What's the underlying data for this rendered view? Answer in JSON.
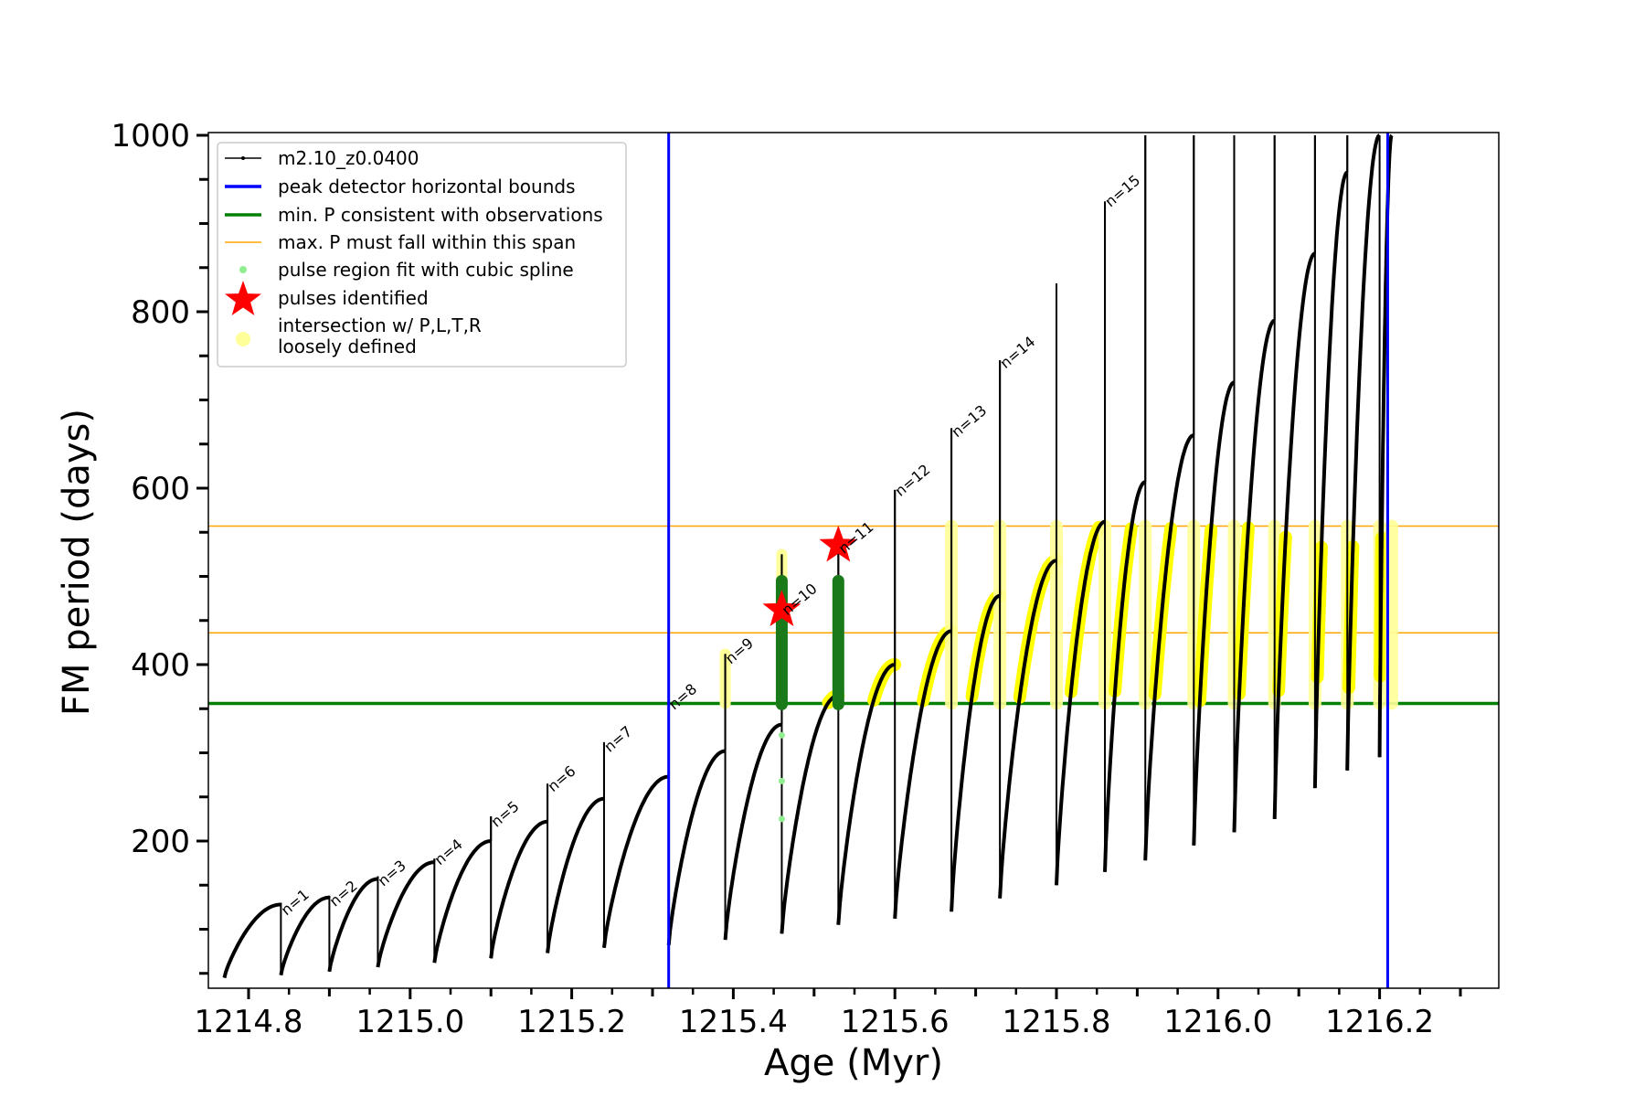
{
  "chart_data": {
    "type": "line",
    "xlabel": "Age (Myr)",
    "ylabel": "FM period (days)",
    "xlim": [
      1214.72,
      1216.32
    ],
    "ylim": [
      30,
      1000
    ],
    "xticks": [
      1214.8,
      1215.0,
      1215.2,
      1215.4,
      1215.6,
      1215.8,
      1216.0,
      1216.2
    ],
    "xtick_labels": [
      "1214.8",
      "1215.0",
      "1215.2",
      "1215.4",
      "1215.6",
      "1215.8",
      "1216.0",
      "1216.2"
    ],
    "yticks": [
      200,
      400,
      600,
      800,
      1000
    ],
    "ytick_labels": [
      "200",
      "400",
      "600",
      "800",
      "1000"
    ],
    "grid": false,
    "legend_position": "top-left",
    "legend": [
      {
        "label": "m2.10_z0.0400",
        "marker": "line-dot",
        "color": "#000000"
      },
      {
        "label": "peak detector horizontal bounds",
        "marker": "line",
        "color": "#0000ff"
      },
      {
        "label": "min. P consistent with observations",
        "marker": "line",
        "color": "#008000"
      },
      {
        "label": "max. P must fall within this span",
        "marker": "thin-line",
        "color": "#ffa500"
      },
      {
        "label": "pulse region fit with cubic spline",
        "marker": "dot",
        "color": "#90ee90"
      },
      {
        "label": "pulses identified",
        "marker": "star",
        "color": "#ff0000"
      },
      {
        "label": "intersection w/ P,L,T,R",
        "label2": "loosely defined",
        "marker": "circle",
        "color": "#ffff99"
      }
    ],
    "vlines": [
      {
        "x": 1215.32,
        "color": "#0000ff",
        "name": "peak detector horizontal bounds"
      },
      {
        "x": 1216.21,
        "color": "#0000ff",
        "name": "peak detector horizontal bounds"
      }
    ],
    "hlines": [
      {
        "y": 356,
        "color": "#008000",
        "name": "min. P consistent with observations"
      },
      {
        "y": 436,
        "color": "#ffa500",
        "name": "max. P must fall within this span"
      },
      {
        "y": 557,
        "color": "#ffa500",
        "name": "max. P must fall within this span"
      }
    ],
    "series": [
      {
        "name": "m2.10_z0.0400",
        "color": "#000000",
        "cycles": [
          {
            "start": 1214.77,
            "end": 1214.84,
            "low": 45,
            "high": 128,
            "spike": 130
          },
          {
            "start": 1214.84,
            "end": 1214.9,
            "low": 48,
            "high": 136,
            "spike": 138
          },
          {
            "start": 1214.9,
            "end": 1214.96,
            "low": 52,
            "high": 157,
            "spike": 160
          },
          {
            "start": 1214.96,
            "end": 1215.03,
            "low": 57,
            "high": 176,
            "spike": 180
          },
          {
            "start": 1215.03,
            "end": 1215.1,
            "low": 62,
            "high": 200,
            "spike": 228
          },
          {
            "start": 1215.1,
            "end": 1215.17,
            "low": 67,
            "high": 222,
            "spike": 265
          },
          {
            "start": 1215.17,
            "end": 1215.24,
            "low": 73,
            "high": 248,
            "spike": 312
          },
          {
            "start": 1215.24,
            "end": 1215.32,
            "low": 79,
            "high": 273,
            "spike": 358
          },
          {
            "start": 1215.32,
            "end": 1215.39,
            "low": 82,
            "high": 302,
            "spike": 412
          },
          {
            "start": 1215.39,
            "end": 1215.46,
            "low": 88,
            "high": 332,
            "spike": 525
          },
          {
            "start": 1215.46,
            "end": 1215.53,
            "low": 95,
            "high": 365,
            "spike": 545
          },
          {
            "start": 1215.53,
            "end": 1215.6,
            "low": 105,
            "high": 400,
            "spike": 598
          },
          {
            "start": 1215.6,
            "end": 1215.67,
            "low": 112,
            "high": 438,
            "spike": 668
          },
          {
            "start": 1215.67,
            "end": 1215.73,
            "low": 120,
            "high": 478,
            "spike": 745
          },
          {
            "start": 1215.73,
            "end": 1215.8,
            "low": 135,
            "high": 518,
            "spike": 832
          },
          {
            "start": 1215.8,
            "end": 1215.86,
            "low": 150,
            "high": 562,
            "spike": 925
          },
          {
            "start": 1215.86,
            "end": 1215.91,
            "low": 165,
            "high": 607,
            "spike": 1000
          },
          {
            "start": 1215.91,
            "end": 1215.97,
            "low": 178,
            "high": 660,
            "spike": 1000
          },
          {
            "start": 1215.97,
            "end": 1216.02,
            "low": 195,
            "high": 720,
            "spike": 1000
          },
          {
            "start": 1216.02,
            "end": 1216.07,
            "low": 210,
            "high": 790,
            "spike": 1000
          },
          {
            "start": 1216.07,
            "end": 1216.12,
            "low": 225,
            "high": 866,
            "spike": 1000
          },
          {
            "start": 1216.12,
            "end": 1216.16,
            "low": 260,
            "high": 958,
            "spike": 1000
          },
          {
            "start": 1216.16,
            "end": 1216.2,
            "low": 280,
            "high": 1000,
            "spike": 1000
          },
          {
            "start": 1216.2,
            "end": 1216.215,
            "low": 295,
            "high": 1000,
            "spike": 1000
          }
        ]
      }
    ],
    "pulses_identified": [
      {
        "x": 1215.46,
        "y": 462
      },
      {
        "x": 1215.53,
        "y": 535
      }
    ],
    "spline_fit_regions": [
      {
        "x": 1215.46,
        "ymin": 355,
        "ymax": 495,
        "extra_points": [
          320,
          268,
          225
        ]
      },
      {
        "x": 1215.53,
        "ymin": 355,
        "ymax": 495,
        "extra_points": []
      }
    ],
    "pulse_labels": [
      {
        "x": 1214.84,
        "y": 115,
        "text": "n=1"
      },
      {
        "x": 1214.9,
        "y": 125,
        "text": "n=2"
      },
      {
        "x": 1214.96,
        "y": 148,
        "text": "n=3"
      },
      {
        "x": 1215.03,
        "y": 172,
        "text": "n=4"
      },
      {
        "x": 1215.1,
        "y": 215,
        "text": "n=5"
      },
      {
        "x": 1215.17,
        "y": 255,
        "text": "n=6"
      },
      {
        "x": 1215.24,
        "y": 300,
        "text": "n=7"
      },
      {
        "x": 1215.32,
        "y": 348,
        "text": "n=8"
      },
      {
        "x": 1215.39,
        "y": 400,
        "text": "n=9"
      },
      {
        "x": 1215.46,
        "y": 455,
        "text": "n=10"
      },
      {
        "x": 1215.53,
        "y": 525,
        "text": "n=11"
      },
      {
        "x": 1215.6,
        "y": 590,
        "text": "n=12"
      },
      {
        "x": 1215.67,
        "y": 657,
        "text": "n=13"
      },
      {
        "x": 1215.73,
        "y": 735,
        "text": "n=14"
      },
      {
        "x": 1215.86,
        "y": 918,
        "text": "n=15"
      }
    ]
  }
}
